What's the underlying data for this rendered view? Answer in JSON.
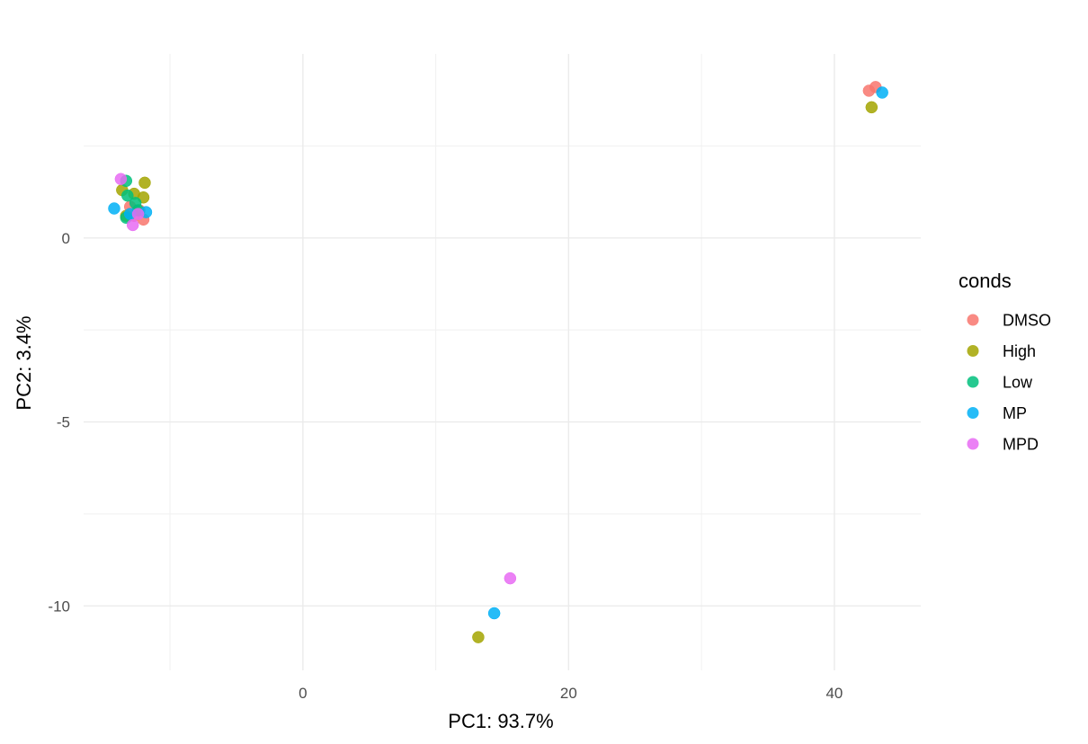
{
  "chart_data": {
    "type": "scatter",
    "xlabel": "PC1: 93.7%",
    "ylabel": "PC2: 3.4%",
    "xlim": [
      -16.5,
      46.5
    ],
    "ylim": [
      -11.75,
      5.0
    ],
    "x_ticks": [
      0,
      20,
      40
    ],
    "y_ticks": [
      0,
      -5,
      -10
    ],
    "x_minor": [
      -10,
      10,
      30
    ],
    "y_minor": [
      2.5,
      -2.5,
      -7.5
    ],
    "grid": true,
    "legend": {
      "title": "conds",
      "position": "right"
    },
    "series": [
      {
        "name": "DMSO",
        "color": "#F8766D",
        "points": [
          [
            -13.0,
            0.85
          ],
          [
            -12.3,
            0.75
          ],
          [
            -12.0,
            0.5
          ],
          [
            -12.7,
            0.6
          ],
          [
            42.6,
            4.0
          ],
          [
            43.1,
            4.1
          ]
        ]
      },
      {
        "name": "High",
        "color": "#A3A500",
        "points": [
          [
            -13.6,
            1.3
          ],
          [
            -12.7,
            1.2
          ],
          [
            -12.0,
            1.1
          ],
          [
            -11.9,
            1.5
          ],
          [
            -13.3,
            0.6
          ],
          [
            42.8,
            3.55
          ],
          [
            13.2,
            -10.85
          ]
        ]
      },
      {
        "name": "Low",
        "color": "#00BF7D",
        "points": [
          [
            -13.3,
            1.55
          ],
          [
            -13.2,
            1.15
          ],
          [
            -12.6,
            0.95
          ],
          [
            -13.3,
            0.55
          ],
          [
            -12.4,
            0.75
          ]
        ]
      },
      {
        "name": "MP",
        "color": "#00B0F6",
        "points": [
          [
            -14.2,
            0.8
          ],
          [
            -11.8,
            0.7
          ],
          [
            -13.0,
            0.65
          ],
          [
            43.6,
            3.95
          ],
          [
            14.4,
            -10.2
          ]
        ]
      },
      {
        "name": "MPD",
        "color": "#E76BF3",
        "points": [
          [
            -13.7,
            1.6
          ],
          [
            -12.8,
            0.35
          ],
          [
            -12.4,
            0.65
          ],
          [
            15.6,
            -9.25
          ]
        ]
      }
    ]
  }
}
